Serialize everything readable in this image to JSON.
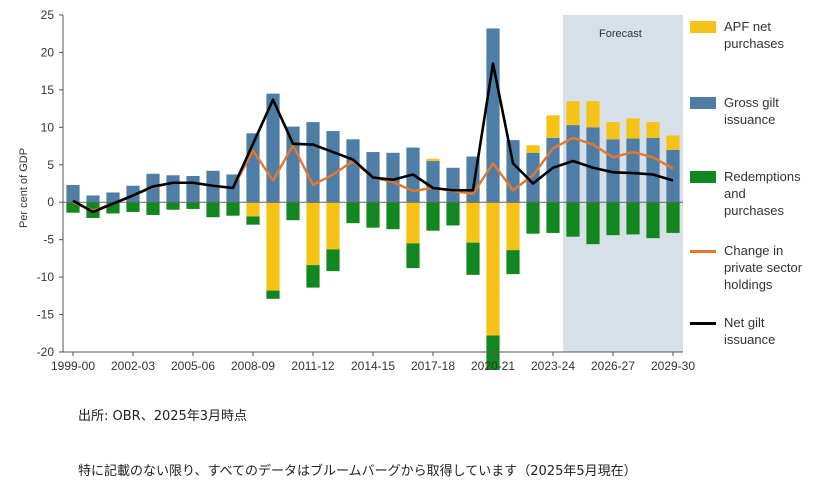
{
  "chart_data": {
    "type": "bar",
    "x_tick_labels": [
      "1999-00",
      "2002-03",
      "2005-06",
      "2008-09",
      "2011-12",
      "2014-15",
      "2017-18",
      "2020-21",
      "2023-24",
      "2026-27",
      "2029-30"
    ],
    "years": [
      "1999-00",
      "2000-01",
      "2001-02",
      "2002-03",
      "2003-04",
      "2004-05",
      "2005-06",
      "2006-07",
      "2007-08",
      "2008-09",
      "2009-10",
      "2010-11",
      "2011-12",
      "2012-13",
      "2013-14",
      "2014-15",
      "2015-16",
      "2016-17",
      "2017-18",
      "2018-19",
      "2019-20",
      "2020-21",
      "2021-22",
      "2022-23",
      "2023-24",
      "2024-25",
      "2025-26",
      "2026-27",
      "2027-28",
      "2028-29",
      "2029-30"
    ],
    "ylabel": "Per cent of GDP",
    "ylim": [
      -20,
      25
    ],
    "yticks": [
      25,
      20,
      15,
      10,
      5,
      0,
      -5,
      -10,
      -15,
      -20
    ],
    "forecast": {
      "label": "Forecast",
      "start": "2024-25",
      "end": "2029-30"
    },
    "series": [
      {
        "name": "APF net\npurchases",
        "kind": "bar",
        "color": "#f5c216",
        "values": [
          0,
          0,
          0,
          0,
          0,
          0,
          0,
          0,
          0,
          -1.9,
          -11.8,
          0,
          -8.4,
          -6.3,
          0,
          0,
          0,
          -5.5,
          0.3,
          0,
          -5.4,
          -17.8,
          -6.4,
          1,
          3,
          3.2,
          3.5,
          2.3,
          2.7,
          2.1,
          1.9
        ]
      },
      {
        "name": "Gross gilt\nissuance",
        "kind": "bar",
        "color": "#4e7ea6",
        "values": [
          2.3,
          0.9,
          1.3,
          2.2,
          3.8,
          3.6,
          3.5,
          4.2,
          3.7,
          9.2,
          14.5,
          10.1,
          10.7,
          9.5,
          8.4,
          6.7,
          6.6,
          7.3,
          5.5,
          4.6,
          6.1,
          23.2,
          8.3,
          6.6,
          8.6,
          10.3,
          10,
          8.4,
          8.5,
          8.6,
          7
        ]
      },
      {
        "name": "Redemptions\nand\npurchases",
        "kind": "bar",
        "color": "#12871f",
        "values": [
          -1.4,
          -2.1,
          -1.5,
          -1.3,
          -1.7,
          -1,
          -0.9,
          -2,
          -1.8,
          -1.1,
          -1.1,
          -2.4,
          -3,
          -2.9,
          -2.8,
          -3.4,
          -3.6,
          -3.3,
          -3.8,
          -3.1,
          -4.3,
          -4.6,
          -3.2,
          -4.2,
          -4.1,
          -4.6,
          -5.6,
          -4.4,
          -4.3,
          -4.8,
          -4.1
        ]
      },
      {
        "name": "Change in\nprivate sector\nholdings",
        "kind": "line",
        "color": "#e8762c",
        "values": [
          0,
          -1.1,
          -0.2,
          0.9,
          2,
          2.6,
          2.6,
          2.2,
          1.9,
          6.9,
          2.9,
          7.6,
          2.3,
          3.7,
          5.5,
          3.3,
          2.7,
          1.5,
          1.9,
          1.5,
          1.1,
          5.2,
          1.6,
          3.6,
          7.2,
          8.6,
          7.7,
          6,
          6.7,
          6,
          4.5
        ]
      },
      {
        "name": "Net gilt\nissuance",
        "kind": "line",
        "color": "#000000",
        "values": [
          0.2,
          -1.3,
          -0.2,
          0.9,
          2.1,
          2.6,
          2.6,
          2.2,
          1.9,
          7.8,
          13.7,
          7.8,
          7.7,
          6.7,
          5.7,
          3.3,
          3,
          3.7,
          1.9,
          1.6,
          1.6,
          18.5,
          5.2,
          2.5,
          4.6,
          5.5,
          4.6,
          4,
          3.9,
          3.7,
          2.9
        ]
      }
    ]
  },
  "source": "出所: OBR、2025年3月時点",
  "note": "特に記載のない限り、すべてのデータはブルームバーグから取得しています（2025年5月現在）"
}
